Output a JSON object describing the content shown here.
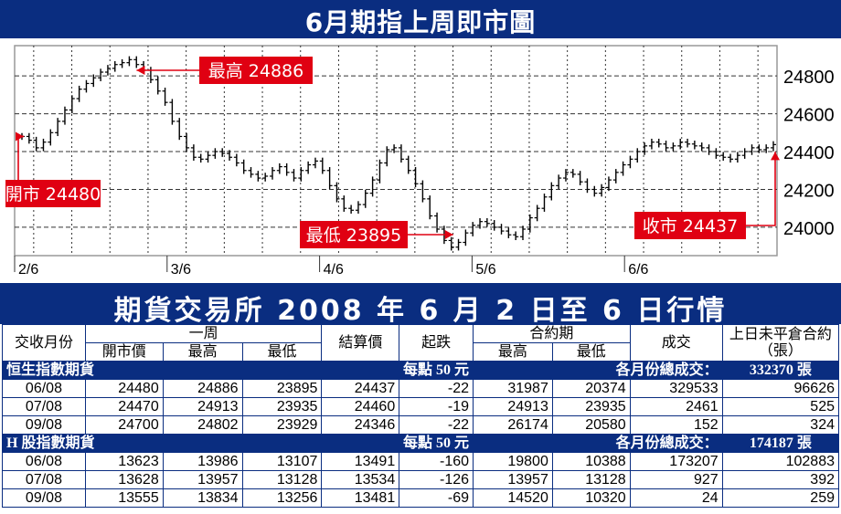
{
  "chart_title": "6月期指上周即市圖",
  "table_title": "期貨交易所 2008 年 6 月 2 日至 6 日行情",
  "colors": {
    "navy": "#0a2d80",
    "red": "#e00012",
    "candle": "#000000"
  },
  "chart_data": {
    "type": "line",
    "title": "6月期指上周即市圖",
    "x_labels": [
      "2/6",
      "3/6",
      "4/6",
      "5/6",
      "6/6"
    ],
    "y_ticks": [
      24000,
      24200,
      24400,
      24600,
      24800
    ],
    "ylim": [
      23850,
      24960
    ],
    "grid": true,
    "series": [
      {
        "values": [
          24480,
          24460,
          24420,
          24450,
          24500,
          24560,
          24620,
          24680,
          24730,
          24760,
          24790,
          24820,
          24840,
          24860,
          24870,
          24886,
          24860,
          24830,
          24780,
          24720,
          24660,
          24560,
          24480,
          24420,
          24370,
          24360,
          24380,
          24400,
          24390,
          24370,
          24340,
          24300,
          24280,
          24260,
          24270,
          24300,
          24320,
          24290,
          24260,
          24300,
          24330,
          24350,
          24300,
          24220,
          24150,
          24100,
          24090,
          24120,
          24180,
          24250,
          24340,
          24410,
          24420,
          24360,
          24300,
          24230,
          24150,
          24060,
          23990,
          23930,
          23895,
          23920,
          23970,
          24010,
          24030,
          24020,
          24000,
          23980,
          23960,
          23950,
          23990,
          24050,
          24100,
          24160,
          24220,
          24260,
          24290,
          24280,
          24240,
          24200,
          24180,
          24210,
          24250,
          24290,
          24330,
          24360,
          24400,
          24430,
          24450,
          24440,
          24420,
          24430,
          24450,
          24440,
          24430,
          24420,
          24400,
          24380,
          24370,
          24360,
          24380,
          24400,
          24420,
          24410,
          24420,
          24437
        ]
      }
    ],
    "annotations": [
      {
        "label": "最高 24886",
        "value": 24886
      },
      {
        "label": "開市 24480",
        "value": 24480
      },
      {
        "label": "最低 23895",
        "value": 23895
      },
      {
        "label": "收市 24437",
        "value": 24437
      }
    ]
  },
  "table": {
    "headers": {
      "month": "交收月份",
      "week": "一周",
      "open": "開市價",
      "high": "最高",
      "low": "最低",
      "settle": "結算價",
      "change": "起跌",
      "contract": "合約期",
      "c_high": "最高",
      "c_low": "最低",
      "volume": "成交",
      "oi": "上日未平倉合約",
      "oi_unit": "（張）"
    },
    "sections": [
      {
        "name": "恒生指數期貨",
        "unit": "每點 50 元",
        "total_label": "各月份總成交：",
        "total": "332370 張",
        "rows": [
          [
            "06/08",
            "24480",
            "24886",
            "23895",
            "24437",
            "-22",
            "31987",
            "20374",
            "329533",
            "96626"
          ],
          [
            "07/08",
            "24470",
            "24913",
            "23935",
            "24460",
            "-19",
            "24913",
            "23935",
            "2461",
            "525"
          ],
          [
            "09/08",
            "24700",
            "24802",
            "23929",
            "24346",
            "-22",
            "26174",
            "20580",
            "152",
            "324"
          ]
        ]
      },
      {
        "name": "H 股指數期貨",
        "unit": "每點 50 元",
        "total_label": "各月份總成交：",
        "total": "174187 張",
        "rows": [
          [
            "06/08",
            "13623",
            "13986",
            "13107",
            "13491",
            "-160",
            "19800",
            "10388",
            "173207",
            "102883"
          ],
          [
            "07/08",
            "13628",
            "13957",
            "13128",
            "13534",
            "-126",
            "13957",
            "13128",
            "927",
            "392"
          ],
          [
            "09/08",
            "13555",
            "13834",
            "13256",
            "13481",
            "-69",
            "14520",
            "10320",
            "24",
            "259"
          ]
        ]
      }
    ]
  }
}
